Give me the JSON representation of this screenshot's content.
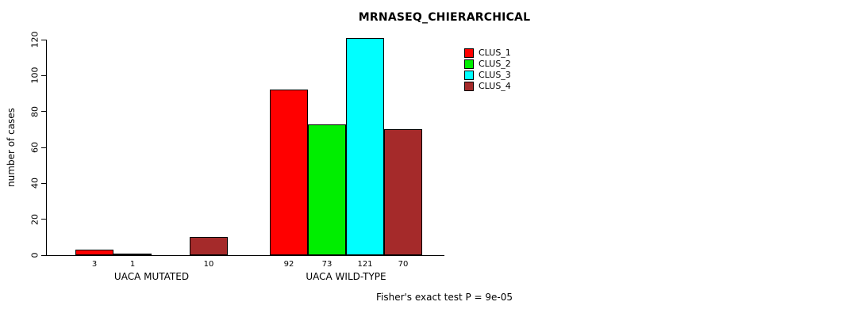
{
  "title": "MRNASEQ_CHIERARCHICAL",
  "chart_data": {
    "type": "bar",
    "title": "MRNASEQ_CHIERARCHICAL",
    "ylabel": "number of cases",
    "xlabel": "",
    "ylim": [
      0,
      120
    ],
    "yticks": [
      0,
      20,
      40,
      60,
      80,
      100,
      120
    ],
    "categories": [
      "UACA MUTATED",
      "UACA WILD-TYPE"
    ],
    "series": [
      {
        "name": "CLUS_1",
        "color": "#ff0000",
        "values": [
          3,
          92
        ]
      },
      {
        "name": "CLUS_2",
        "color": "#00ee00",
        "values": [
          1,
          73
        ]
      },
      {
        "name": "CLUS_3",
        "color": "#00ffff",
        "values": [
          0,
          121
        ]
      },
      {
        "name": "CLUS_4",
        "color": "#a52a2a",
        "values": [
          10,
          70
        ]
      }
    ],
    "bar_value_labels": [
      [
        "3",
        "1",
        "",
        "10"
      ],
      [
        "92",
        "73",
        "121",
        "70"
      ]
    ],
    "legend_position": "top-right",
    "grid": false,
    "annotation": "Fisher's exact test P = 9e-05"
  }
}
